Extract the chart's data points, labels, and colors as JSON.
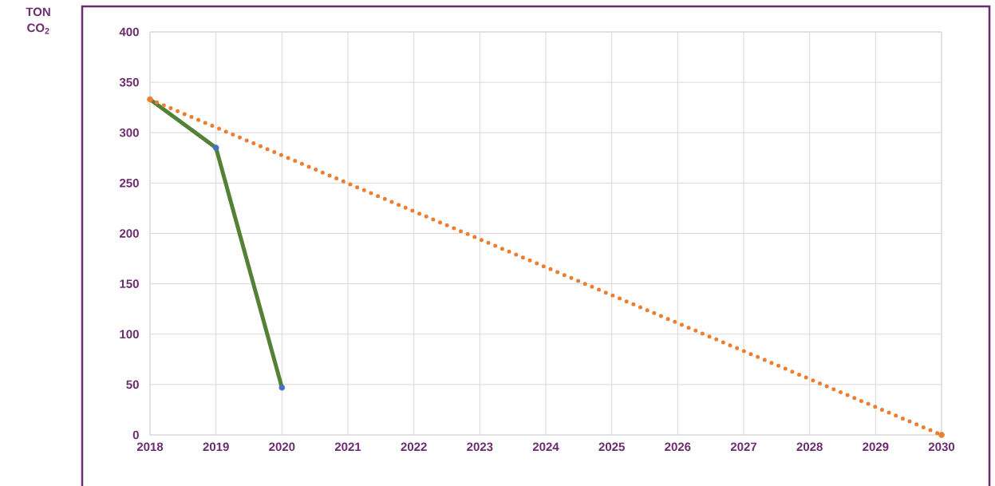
{
  "chart_data": {
    "type": "line",
    "annotations": [
      "TON CO$_{2}$"
    ],
    "xlim": [
      2018,
      2030
    ],
    "xticks": [
      2018,
      2019,
      2020,
      2021,
      2022,
      2023,
      2024,
      2025,
      2026,
      2027,
      2028,
      2029,
      2030
    ],
    "ylim": [
      0,
      400
    ],
    "yticks": [
      0,
      50,
      100,
      150,
      200,
      250,
      300,
      350,
      400
    ],
    "grid": true,
    "series": [
      {
        "color": "#548235",
        "x": [
          2018,
          2019,
          2020
        ],
        "values": [
          333,
          285,
          47
        ],
        "marker": "none",
        "line_style": "solid"
      },
      {
        "type": "scatter",
        "color": "#4472c4",
        "x": [
          2019,
          2020
        ],
        "values": [
          285,
          47
        ],
        "marker": "circle"
      },
      {
        "type": "line",
        "color": "#ed7d31",
        "x": [
          2018,
          2030
        ],
        "values": [
          333,
          0
        ],
        "marker": "circle",
        "line_style": "dotted"
      }
    ]
  }
}
